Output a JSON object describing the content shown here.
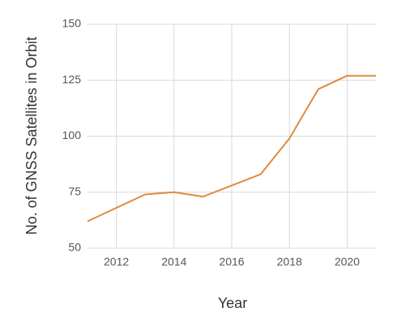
{
  "chart_data": {
    "type": "line",
    "x_label": "Year",
    "y_label": "No. of GNSS Satellites in Orbit",
    "x": [
      2011,
      2012,
      2013,
      2014,
      2015,
      2016,
      2017,
      2018,
      2019,
      2020,
      2021
    ],
    "series": [
      {
        "color": "#e08a3c",
        "values": [
          62,
          68,
          74,
          75,
          73,
          78,
          83,
          99,
          121,
          127,
          127
        ]
      }
    ],
    "xlim": [
      2011,
      2021
    ],
    "xticks": [
      2012,
      2014,
      2016,
      2018,
      2020
    ],
    "ylim": [
      50,
      150
    ],
    "yticks": [
      50,
      75,
      100,
      125,
      150
    ],
    "grid": true
  }
}
